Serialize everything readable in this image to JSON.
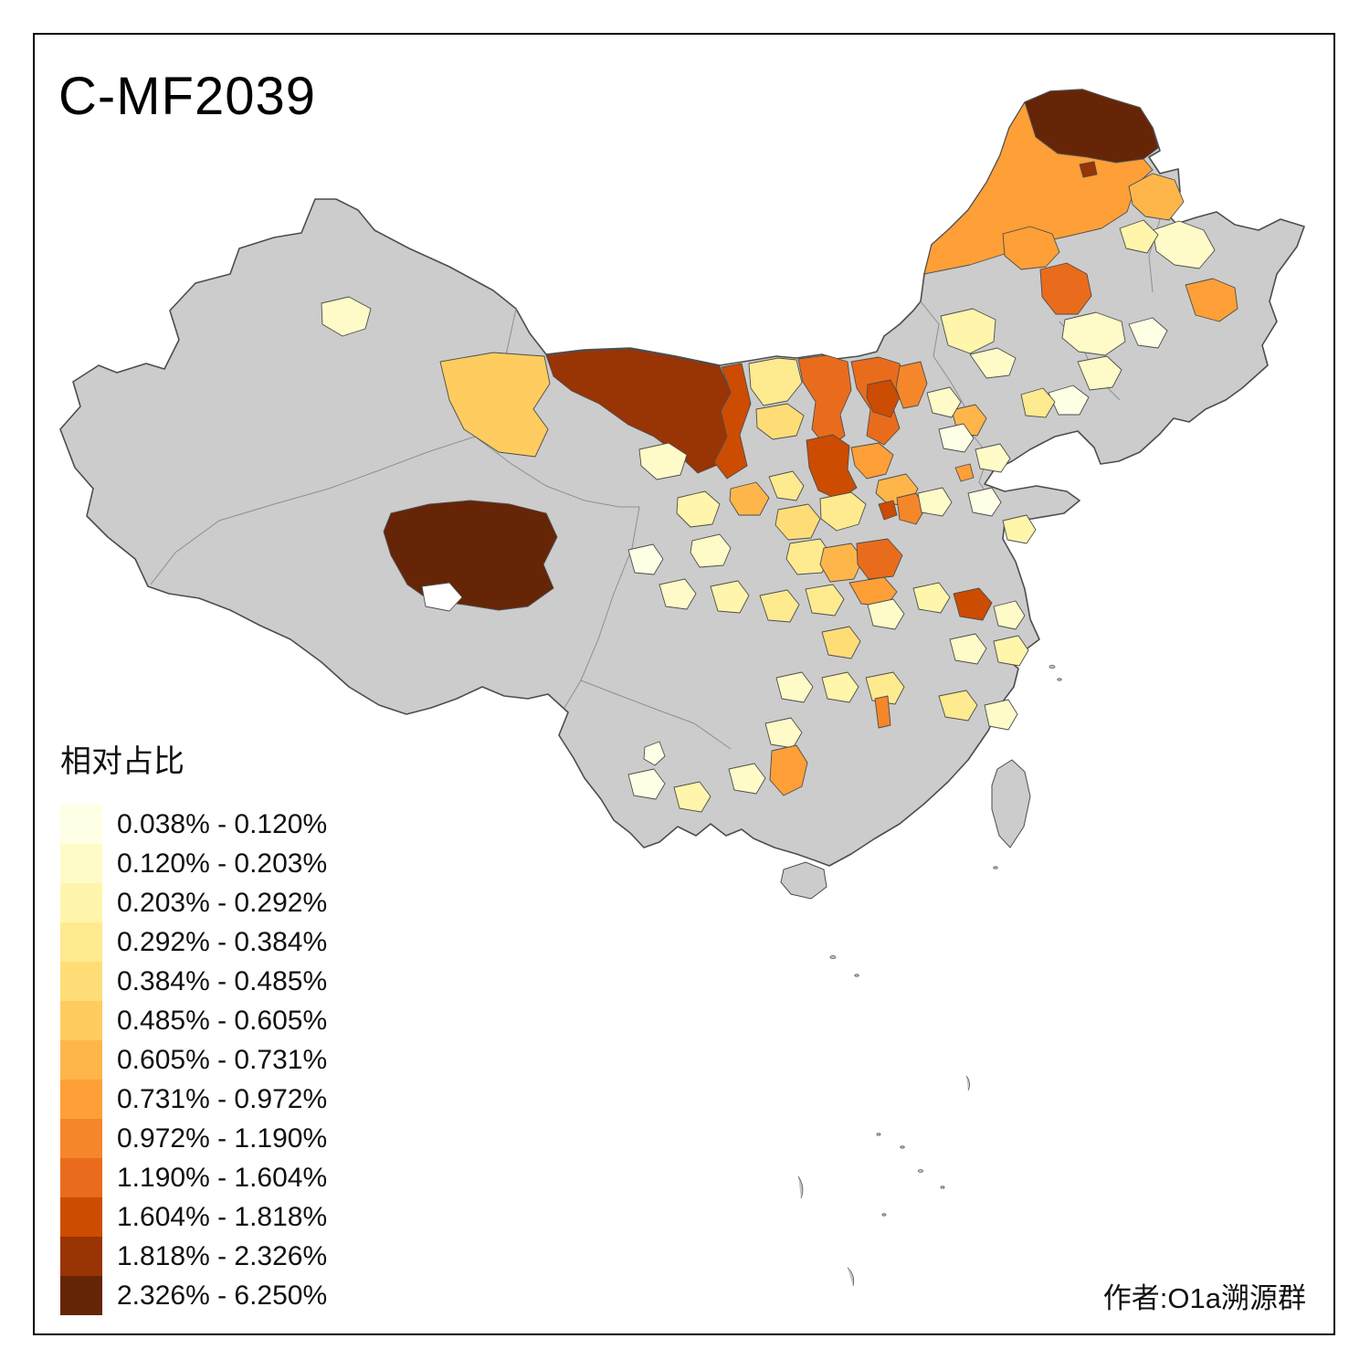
{
  "title": "C-MF2039",
  "attribution": "作者:O1a溯源群",
  "legend": {
    "title": "相对占比",
    "classes": [
      {
        "label": "0.038% - 0.120%",
        "color": "#FFFFE5"
      },
      {
        "label": "0.120% - 0.203%",
        "color": "#FFFBC8"
      },
      {
        "label": "0.203% - 0.292%",
        "color": "#FFF5AB"
      },
      {
        "label": "0.292% - 0.384%",
        "color": "#FEEA8F"
      },
      {
        "label": "0.384% - 0.485%",
        "color": "#FEDD77"
      },
      {
        "label": "0.485% - 0.605%",
        "color": "#FECC5F"
      },
      {
        "label": "0.605% - 0.731%",
        "color": "#FEB64B"
      },
      {
        "label": "0.731% - 0.972%",
        "color": "#FE9F38"
      },
      {
        "label": "0.972% - 1.190%",
        "color": "#F6862A"
      },
      {
        "label": "1.190% - 1.604%",
        "color": "#E96C1C"
      },
      {
        "label": "1.604% - 1.818%",
        "color": "#CC4C02"
      },
      {
        "label": "1.818% - 2.326%",
        "color": "#993404"
      },
      {
        "label": "2.326% - 6.250%",
        "color": "#662506"
      }
    ]
  },
  "map": {
    "no_data_color": "#CCCCCC",
    "border_color": "#4D4D4D",
    "background_color": "#FFFFFF",
    "water_color": "#FFFFFF",
    "region_classes": {
      "r01": 13,
      "r02": 8,
      "r03": 12,
      "r04": 7,
      "r05": 2,
      "r06": 3,
      "r07": 8,
      "r08": 10,
      "r09": 8,
      "r10": 2,
      "r11": 1,
      "r12": 3,
      "r13": 2,
      "r14": 2,
      "r15": 1,
      "r16": 4,
      "r17": 6,
      "r18": 12,
      "r19": 11,
      "r20": 4,
      "r21": 5,
      "r22": 10,
      "r23": 10,
      "r24": 11,
      "r25": 9,
      "r26": 7,
      "r27": 2,
      "r28": 11,
      "r29": 8,
      "r30": 7,
      "r31": 4,
      "r32": 11,
      "r33": 9,
      "r34": 5,
      "r35": 4,
      "r36": 7,
      "r37": 10,
      "r38": 8,
      "r39": 13,
      "rw": 0,
      "r40": 2,
      "r41": 2,
      "r42": 3,
      "r43": 2,
      "r44": 7,
      "r45": 4,
      "r46": 1,
      "r47": 2,
      "r48": 3,
      "r49": 4,
      "r50": 4,
      "r51": 5,
      "r52": 2,
      "r53": 3,
      "r54": 11,
      "r55": 2,
      "r56": 3,
      "r57": 2,
      "r58": 4,
      "r59": 3,
      "r60": 2,
      "r61": 4,
      "r62": 2,
      "r63": 9,
      "r64": 2,
      "r65": 8,
      "r66": 2,
      "r67": 1,
      "r68": 3,
      "r69": 1,
      "r70": 1,
      "r71": 2,
      "r72": 8,
      "r73": 2,
      "r74": 1,
      "r75": 3
    }
  },
  "chart_data": {
    "type": "choropleth",
    "title": "C-MF2039",
    "legend_title": "相对占比",
    "unit": "%",
    "breaks": [
      0.038,
      0.12,
      0.203,
      0.292,
      0.384,
      0.485,
      0.605,
      0.731,
      0.972,
      1.19,
      1.604,
      1.818,
      2.326,
      6.25
    ],
    "palette": [
      "#FFFFE5",
      "#FFFBC8",
      "#FFF5AB",
      "#FEEA8F",
      "#FEDD77",
      "#FECC5F",
      "#FEB64B",
      "#FE9F38",
      "#F6862A",
      "#E96C1C",
      "#CC4C02",
      "#993404",
      "#662506"
    ],
    "no_data_color": "#CCCCCC"
  }
}
